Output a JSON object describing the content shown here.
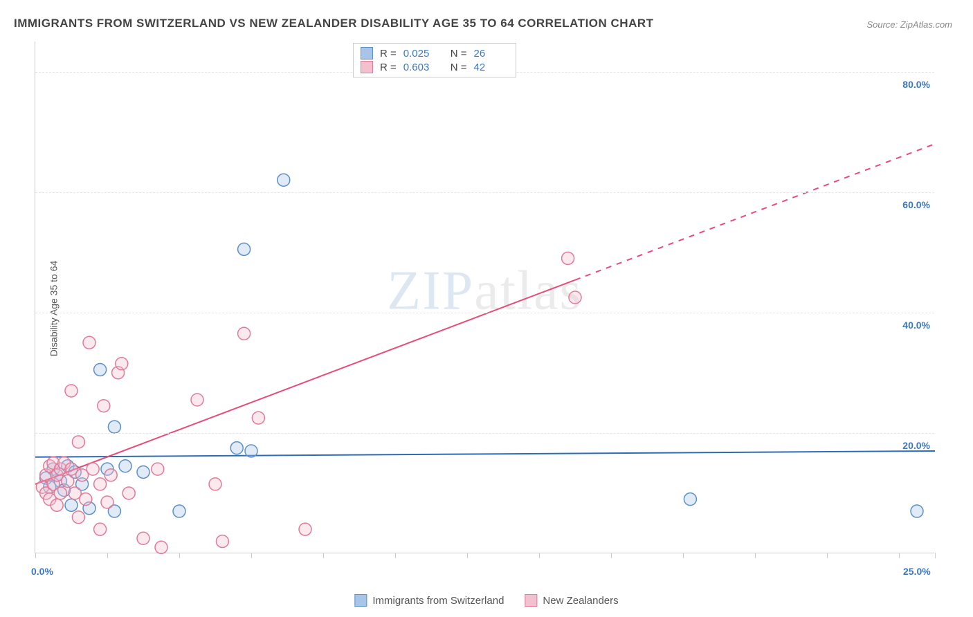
{
  "title": "IMMIGRANTS FROM SWITZERLAND VS NEW ZEALANDER DISABILITY AGE 35 TO 64 CORRELATION CHART",
  "source": "Source: ZipAtlas.com",
  "ylabel": "Disability Age 35 to 64",
  "watermark_zip": "ZIP",
  "watermark_atlas": "atlas",
  "chart": {
    "type": "scatter",
    "background_color": "#ffffff",
    "grid_color": "#e5e5e5",
    "axis_color": "#cccccc",
    "tick_label_color": "#3b77bd",
    "tick_fontsize": 14,
    "xlim": [
      0,
      25
    ],
    "ylim": [
      0,
      85
    ],
    "xticks": [
      0,
      2,
      4,
      6,
      8,
      10,
      12,
      14,
      16,
      18,
      20,
      22,
      24,
      25
    ],
    "xtick_labels": {
      "0": "0.0%",
      "25": "25.0%"
    },
    "yticks": [
      20,
      40,
      60,
      80
    ],
    "ytick_labels": [
      "20.0%",
      "40.0%",
      "60.0%",
      "80.0%"
    ],
    "marker_radius": 9,
    "marker_fill_opacity": 0.35,
    "marker_stroke_width": 1.5,
    "trend_line_width": 2
  },
  "series": [
    {
      "name": "Immigrants from Switzerland",
      "color_fill": "#a7c5e8",
      "color_stroke": "#5b8fc9",
      "trend_color": "#2e6bb5",
      "r": "0.025",
      "n": "26",
      "trend": {
        "x1": 0,
        "y1": 16.0,
        "x2": 25,
        "y2": 17.0,
        "dashed_from_x": null
      },
      "points": [
        [
          0.3,
          12.5
        ],
        [
          0.4,
          11.0
        ],
        [
          0.5,
          14.0
        ],
        [
          0.6,
          13.0
        ],
        [
          0.7,
          12.0
        ],
        [
          0.8,
          10.5
        ],
        [
          0.9,
          14.5
        ],
        [
          1.0,
          8.0
        ],
        [
          1.1,
          13.5
        ],
        [
          1.3,
          11.5
        ],
        [
          1.5,
          7.5
        ],
        [
          1.8,
          30.5
        ],
        [
          2.0,
          14.0
        ],
        [
          2.2,
          7.0
        ],
        [
          2.2,
          21.0
        ],
        [
          2.5,
          14.5
        ],
        [
          3.0,
          13.5
        ],
        [
          4.0,
          7.0
        ],
        [
          5.6,
          17.5
        ],
        [
          5.8,
          50.5
        ],
        [
          6.0,
          17.0
        ],
        [
          6.9,
          62.0
        ],
        [
          18.2,
          9.0
        ],
        [
          24.5,
          7.0
        ]
      ]
    },
    {
      "name": "New Zealanders",
      "color_fill": "#f3c0cd",
      "color_stroke": "#e07a98",
      "trend_color": "#e84b78",
      "r": "0.603",
      "n": "42",
      "trend": {
        "x1": 0,
        "y1": 11.5,
        "x2": 25,
        "y2": 68.0,
        "dashed_from_x": 15.0
      },
      "points": [
        [
          0.2,
          11.0
        ],
        [
          0.3,
          13.0
        ],
        [
          0.3,
          10.0
        ],
        [
          0.4,
          14.5
        ],
        [
          0.4,
          9.0
        ],
        [
          0.5,
          11.5
        ],
        [
          0.5,
          15.0
        ],
        [
          0.6,
          13.0
        ],
        [
          0.6,
          8.0
        ],
        [
          0.7,
          14.0
        ],
        [
          0.7,
          10.0
        ],
        [
          0.8,
          15.0
        ],
        [
          0.9,
          12.0
        ],
        [
          1.0,
          14.0
        ],
        [
          1.0,
          27.0
        ],
        [
          1.1,
          10.0
        ],
        [
          1.2,
          18.5
        ],
        [
          1.2,
          6.0
        ],
        [
          1.3,
          13.0
        ],
        [
          1.4,
          9.0
        ],
        [
          1.5,
          35.0
        ],
        [
          1.6,
          14.0
        ],
        [
          1.8,
          4.0
        ],
        [
          1.8,
          11.5
        ],
        [
          1.9,
          24.5
        ],
        [
          2.0,
          8.5
        ],
        [
          2.1,
          13.0
        ],
        [
          2.3,
          30.0
        ],
        [
          2.4,
          31.5
        ],
        [
          2.6,
          10.0
        ],
        [
          3.0,
          2.5
        ],
        [
          3.4,
          14.0
        ],
        [
          3.5,
          1.0
        ],
        [
          4.5,
          25.5
        ],
        [
          5.0,
          11.5
        ],
        [
          5.2,
          2.0
        ],
        [
          5.8,
          36.5
        ],
        [
          6.2,
          22.5
        ],
        [
          7.5,
          4.0
        ],
        [
          14.8,
          49.0
        ],
        [
          15.0,
          42.5
        ]
      ]
    }
  ],
  "stats_legend_labels": {
    "R": "R =",
    "N": "N ="
  }
}
